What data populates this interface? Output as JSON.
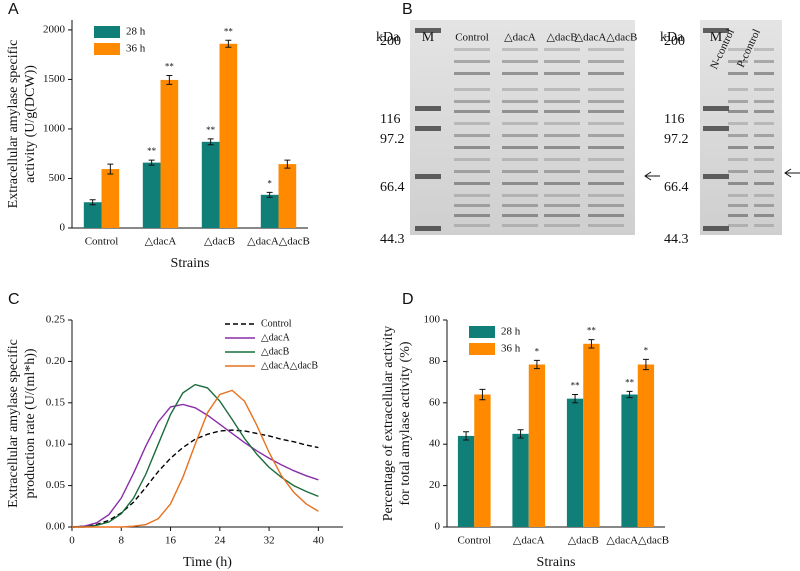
{
  "chart_data": [
    {
      "type": "bar",
      "label": "A",
      "xlabel": "Strains",
      "ylabel": [
        "Extracellular amylase specific",
        "activity (U/g(DCW))"
      ],
      "categories": [
        "Control",
        "△dacA",
        "△dacB",
        "△dacA△dacB"
      ],
      "series": [
        {
          "name": "28 h",
          "color": "#0f7f78",
          "values": [
            260,
            660,
            870,
            335
          ],
          "errors": [
            25,
            25,
            30,
            25
          ],
          "sig": [
            null,
            "**",
            "**",
            "*"
          ]
        },
        {
          "name": "36 h",
          "color": "#ff8a00",
          "values": [
            595,
            1495,
            1860,
            645
          ],
          "errors": [
            50,
            45,
            35,
            40
          ],
          "sig": [
            null,
            "**",
            "**",
            null
          ]
        }
      ],
      "ylim": [
        0,
        2100
      ],
      "yticks": [
        0,
        500,
        1000,
        1500,
        2000
      ],
      "legend": "upper left"
    },
    {
      "type": "line",
      "label": "C",
      "xlabel": "Time (h)",
      "ylabel": [
        "Extracellular amylase specific",
        "production rate (U/(ml*h))"
      ],
      "x": [
        0,
        2,
        4,
        6,
        8,
        10,
        12,
        14,
        16,
        18,
        20,
        22,
        24,
        26,
        28,
        30,
        32,
        34,
        36,
        38,
        40
      ],
      "series": [
        {
          "name": "Control",
          "color": "#000000",
          "style": "dashed",
          "values": [
            0,
            0.001,
            0.003,
            0.008,
            0.017,
            0.03,
            0.048,
            0.067,
            0.083,
            0.096,
            0.106,
            0.112,
            0.116,
            0.117,
            0.116,
            0.113,
            0.11,
            0.106,
            0.103,
            0.099,
            0.096
          ]
        },
        {
          "name": "△dacA",
          "color": "#8a2ea8",
          "style": "solid",
          "values": [
            0,
            0.001,
            0.005,
            0.015,
            0.035,
            0.065,
            0.098,
            0.127,
            0.145,
            0.148,
            0.144,
            0.135,
            0.124,
            0.113,
            0.102,
            0.092,
            0.083,
            0.075,
            0.068,
            0.062,
            0.057
          ]
        },
        {
          "name": "△dacB",
          "color": "#1a6b3c",
          "style": "solid",
          "values": [
            0,
            0,
            0.002,
            0.006,
            0.016,
            0.035,
            0.064,
            0.1,
            0.136,
            0.162,
            0.172,
            0.168,
            0.152,
            0.13,
            0.107,
            0.088,
            0.072,
            0.06,
            0.05,
            0.043,
            0.037
          ]
        },
        {
          "name": "△dacA△dacB",
          "color": "#e8701e",
          "style": "solid",
          "values": [
            0,
            0,
            0,
            0,
            0,
            0.001,
            0.003,
            0.01,
            0.028,
            0.06,
            0.1,
            0.138,
            0.16,
            0.165,
            0.152,
            0.123,
            0.09,
            0.062,
            0.042,
            0.028,
            0.019
          ]
        }
      ],
      "xlim": [
        0,
        44
      ],
      "xticks": [
        0,
        8,
        16,
        24,
        32,
        40
      ],
      "ylim": [
        0,
        0.25
      ],
      "yticks": [
        {
          "value": 0,
          "label": "0.00"
        },
        {
          "value": 0.05,
          "label": "0.05"
        },
        {
          "value": 0.1,
          "label": "0.10"
        },
        {
          "value": 0.15,
          "label": "0.15"
        },
        {
          "value": 0.2,
          "label": "0.20"
        },
        {
          "value": 0.25,
          "label": "0.25"
        }
      ],
      "legend": "upper right"
    },
    {
      "type": "bar",
      "label": "D",
      "xlabel": "Strains",
      "ylabel": [
        "Percentage of extracellular activity",
        "for total amylase activity (%)"
      ],
      "categories": [
        "Control",
        "△dacA",
        "△dacB",
        "△dacA△dacB"
      ],
      "series": [
        {
          "name": "28 h",
          "color": "#0f7f78",
          "values": [
            44,
            45,
            62,
            64
          ],
          "errors": [
            2,
            2,
            2,
            1.5
          ],
          "sig": [
            null,
            null,
            "**",
            "**"
          ]
        },
        {
          "name": "36 h",
          "color": "#ff8a00",
          "values": [
            64,
            78.5,
            88.5,
            78.5
          ],
          "errors": [
            2.5,
            2,
            2,
            2.5
          ],
          "sig": [
            null,
            "*",
            "**",
            "*"
          ]
        }
      ],
      "ylim": [
        0,
        100
      ],
      "yticks": [
        0,
        20,
        40,
        60,
        80,
        100
      ],
      "legend": "upper left"
    }
  ],
  "gel": {
    "label": "B",
    "left": {
      "unit": "kDa",
      "lanes": [
        "M",
        "Control",
        "△dacA",
        "△dacB",
        "△dacA△dacB"
      ],
      "markers": [
        "200",
        "116",
        "97.2",
        "66.4",
        "44.3"
      ]
    },
    "right": {
      "unit": "kDa",
      "lanes": [
        "M",
        "N-control",
        "P-control"
      ],
      "markers": [
        "200",
        "116",
        "97.2",
        "66.4",
        "44.3"
      ]
    }
  }
}
